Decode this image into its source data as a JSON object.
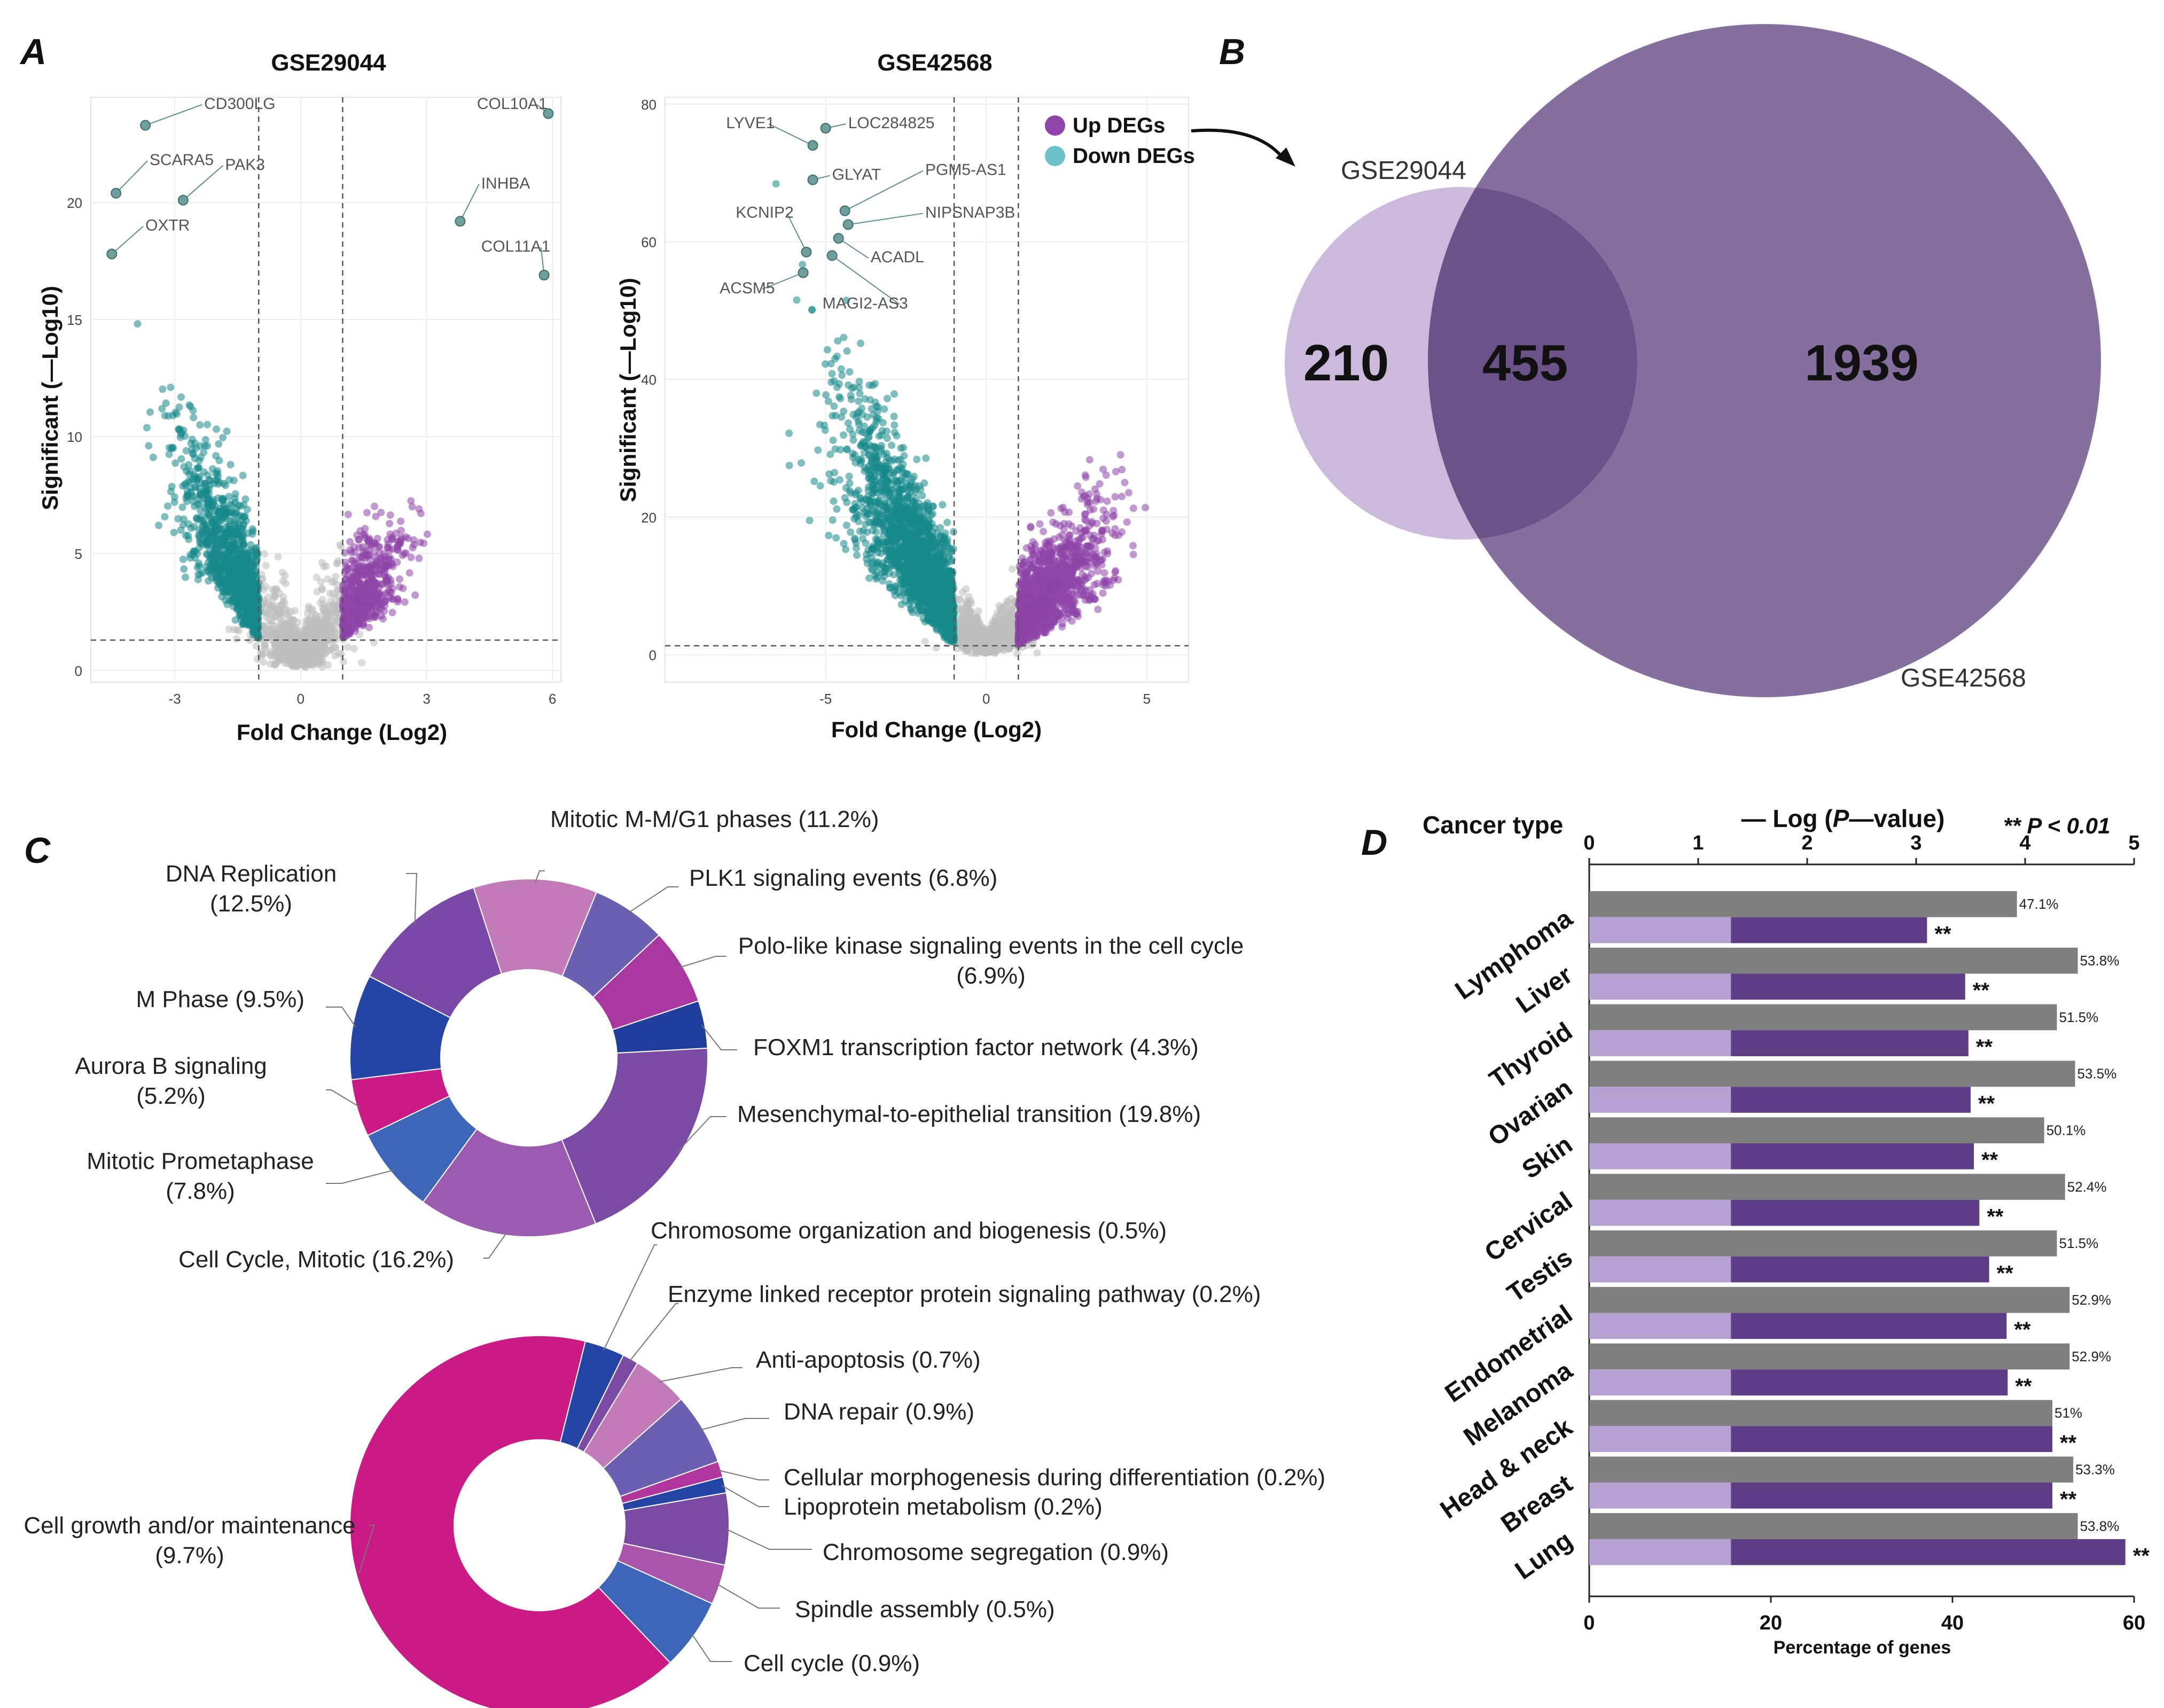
{
  "panel_labels": {
    "a": "A",
    "b": "B",
    "c": "C",
    "d": "D"
  },
  "colors": {
    "up": "#8e44a8",
    "down": "#15898a",
    "ns": "#bdbdbd",
    "grid": "#d0d0d0",
    "vennA": "#c9b6db",
    "vennB": "#7a6396",
    "vennOverlap": "#6b5289",
    "barGray": "#7f7f7f",
    "barLight": "#b5a2d3",
    "barDark": "#5e3d86"
  },
  "chart_data": [
    {
      "id": "volcano1",
      "type": "scatter",
      "title": "GSE29044",
      "xlabel": "Fold Change (Log2)",
      "ylabel": "Significant (—Log10)",
      "xlim": [
        -5,
        6.2
      ],
      "ylim": [
        -0.5,
        24.5
      ],
      "xticks": [
        "-3",
        "0",
        "3",
        "6"
      ],
      "yticks": [
        "0",
        "5",
        "10",
        "15",
        "20"
      ],
      "fc_threshold": 1,
      "p_threshold": 1.3,
      "labels": [
        {
          "name": "CD300LG",
          "x": -3.7,
          "y": 23.3,
          "lx": -2.3,
          "ly": 24.0
        },
        {
          "name": "SCARA5",
          "x": -4.4,
          "y": 20.4,
          "lx": -3.6,
          "ly": 21.6
        },
        {
          "name": "PAK3",
          "x": -2.8,
          "y": 20.1,
          "lx": -1.8,
          "ly": 21.4
        },
        {
          "name": "OXTR",
          "x": -4.5,
          "y": 17.8,
          "lx": -3.7,
          "ly": 18.8
        },
        {
          "name": "COL10A1",
          "x": 5.9,
          "y": 23.8,
          "lx": 4.2,
          "ly": 24.0
        },
        {
          "name": "INHBA",
          "x": 3.8,
          "y": 19.2,
          "lx": 4.3,
          "ly": 20.6
        },
        {
          "name": "COL11A1",
          "x": 5.8,
          "y": 16.9,
          "lx": 4.3,
          "ly": 17.9
        }
      ]
    },
    {
      "id": "volcano2",
      "type": "scatter",
      "title": "GSE42568",
      "xlabel": "Fold Change (Log2)",
      "ylabel": "Significant (—Log10)",
      "xlim": [
        -10,
        6.3
      ],
      "ylim": [
        -4,
        81
      ],
      "xticks": [
        "-5",
        "0",
        "5"
      ],
      "xtick_values": [
        -5,
        0,
        5
      ],
      "yticks": [
        "0",
        "20",
        "40",
        "60",
        "80"
      ],
      "fc_threshold": 1,
      "p_threshold": 1.3,
      "legend": [
        {
          "name": "Up DEGs",
          "color": "#8e44a8"
        },
        {
          "name": "Down DEGs",
          "color": "#6cc2c9"
        }
      ],
      "labels": [
        {
          "name": "LYVE1",
          "x": -5.4,
          "y": 74.0,
          "lx": -8.1,
          "ly": 76.5
        },
        {
          "name": "LOC284825",
          "x": -5.0,
          "y": 76.5,
          "lx": -4.3,
          "ly": 76.5
        },
        {
          "name": "GLYAT",
          "x": -5.4,
          "y": 69.0,
          "lx": -4.8,
          "ly": 69.0
        },
        {
          "name": "PGM5-AS1",
          "x": -4.4,
          "y": 64.5,
          "lx": -1.9,
          "ly": 69.7
        },
        {
          "name": "KCNIP2",
          "x": -5.6,
          "y": 58.5,
          "lx": -7.8,
          "ly": 63.5
        },
        {
          "name": "NIPSNAP3B",
          "x": -4.3,
          "y": 62.5,
          "lx": -1.9,
          "ly": 63.5
        },
        {
          "name": "ACADL",
          "x": -4.6,
          "y": 60.5,
          "lx": -3.6,
          "ly": 57.0
        },
        {
          "name": "ACSM5",
          "x": -5.7,
          "y": 55.5,
          "lx": -8.3,
          "ly": 52.5
        },
        {
          "name": "MAGI2-AS3",
          "x": -4.8,
          "y": 58.0,
          "lx": -5.1,
          "ly": 50.3
        }
      ]
    },
    {
      "id": "venn",
      "type": "venn",
      "sets": [
        "GSE29044",
        "GSE42568"
      ],
      "only_a": 210,
      "overlap": 455,
      "only_b": 1939
    },
    {
      "id": "pie1",
      "type": "pie",
      "donut": true,
      "slices": [
        {
          "label": "Mitotic M-M/G1 phases (11.2%)",
          "value": 11.2,
          "color": "#c27bb8"
        },
        {
          "label": "PLK1 signaling events (6.8%)",
          "value": 6.8,
          "color": "#6a5fb0"
        },
        {
          "label": "Polo-like kinase signaling events in the cell cycle (6.9%)",
          "value": 6.9,
          "color": "#a8389f"
        },
        {
          "label": "FOXM1 transcription factor network (4.3%)",
          "value": 4.3,
          "color": "#1f3e9e"
        },
        {
          "label": "Mesenchymal-to-epithelial transition (19.8%)",
          "value": 19.8,
          "color": "#7b4aa4"
        },
        {
          "label": "Cell Cycle, Mitotic (16.2%)",
          "value": 16.2,
          "color": "#9b5bb0"
        },
        {
          "label": "Mitotic Prometaphase (7.8%)",
          "value": 7.8,
          "color": "#3e66b8"
        },
        {
          "label": "Aurora B signaling (5.2%)",
          "value": 5.2,
          "color": "#cb1a86"
        },
        {
          "label": "M Phase (9.5%)",
          "value": 9.5,
          "color": "#2444a6"
        },
        {
          "label": "DNA Replication (12.5%)",
          "value": 12.5,
          "color": "#7a48a6"
        }
      ],
      "display_labels": [
        {
          "lines": [
            "Mitotic M-M/G1 phases (11.2%)"
          ],
          "anchor": "start"
        },
        {
          "lines": [
            "PLK1 signaling events (6.8%)"
          ],
          "anchor": "start"
        },
        {
          "lines": [
            "Polo-like kinase signaling events in the cell cycle",
            "(6.9%)"
          ],
          "anchor": "middle"
        },
        {
          "lines": [
            "FOXM1 transcription factor network (4.3%)"
          ],
          "anchor": "start"
        },
        {
          "lines": [
            "Mesenchymal-to-epithelial transition (19.8%)"
          ],
          "anchor": "start"
        },
        {
          "lines": [
            "Cell Cycle, Mitotic (16.2%)"
          ],
          "anchor": "end"
        },
        {
          "lines": [
            "Mitotic Prometaphase",
            "(7.8%)"
          ],
          "anchor": "middle"
        },
        {
          "lines": [
            "Aurora B signaling",
            "(5.2%)"
          ],
          "anchor": "middle"
        },
        {
          "lines": [
            "M Phase (9.5%)"
          ],
          "anchor": "end"
        },
        {
          "lines": [
            "DNA Replication",
            "(12.5%)"
          ],
          "anchor": "middle"
        }
      ]
    },
    {
      "id": "pie2",
      "type": "pie",
      "donut": true,
      "slices": [
        {
          "label": "Chromosome organization and biogenesis (0.5%)",
          "value": 0.5,
          "color": "#2444a6"
        },
        {
          "label": "Enzyme linked receptor protein signaling pathway (0.2%)",
          "value": 0.2,
          "color": "#7b4aa4"
        },
        {
          "label": "Anti-apoptosis (0.7%)",
          "value": 0.7,
          "color": "#c27bb8"
        },
        {
          "label": "DNA repair (0.9%)",
          "value": 0.9,
          "color": "#6a5fb0"
        },
        {
          "label": "Cellular morphogenesis during differentiation (0.2%)",
          "value": 0.2,
          "color": "#b0359c"
        },
        {
          "label": "Lipoprotein metabolism (0.2%)",
          "value": 0.2,
          "color": "#2444a6"
        },
        {
          "label": "Chromosome segregation (0.9%)",
          "value": 0.9,
          "color": "#7b4aa4"
        },
        {
          "label": "Spindle assembly (0.5%)",
          "value": 0.5,
          "color": "#a855ab"
        },
        {
          "label": "Cell cycle (0.9%)",
          "value": 0.9,
          "color": "#3e66b8"
        },
        {
          "label": "Cell growth and/or maintenance (9.7%)",
          "value": 9.7,
          "color": "#cb1a86"
        }
      ],
      "display_labels": [
        {
          "lines": [
            "Chromosome organization and biogenesis (0.5%)"
          ],
          "anchor": "start"
        },
        {
          "lines": [
            "Enzyme linked receptor protein signaling pathway (0.2%)"
          ],
          "anchor": "start"
        },
        {
          "lines": [
            "Anti-apoptosis (0.7%)"
          ],
          "anchor": "start"
        },
        {
          "lines": [
            "DNA repair (0.9%)"
          ],
          "anchor": "start"
        },
        {
          "lines": [
            "Cellular morphogenesis during differentiation (0.2%)"
          ],
          "anchor": "start"
        },
        {
          "lines": [
            "Lipoprotein metabolism (0.2%)"
          ],
          "anchor": "start"
        },
        {
          "lines": [
            "Chromosome segregation (0.9%)"
          ],
          "anchor": "start"
        },
        {
          "lines": [
            "Spindle assembly (0.5%)"
          ],
          "anchor": "start"
        },
        {
          "lines": [
            "Cell cycle (0.9%)"
          ],
          "anchor": "start"
        },
        {
          "lines": [
            "Cell growth and/or maintenance",
            "(9.7%)"
          ],
          "anchor": "middle"
        }
      ]
    },
    {
      "id": "bars",
      "type": "bar",
      "orientation": "horizontal",
      "category_title": "Cancer type",
      "top_axis_title_pre": "— Log (",
      "top_axis_title_p": "P",
      "top_axis_title_post": "—value)",
      "significance_note": "** P < 0.01",
      "bottom_axis_title": "Percentage of genes",
      "top_range": [
        0,
        5
      ],
      "top_ticks": [
        "0",
        "1",
        "2",
        "3",
        "4",
        "5"
      ],
      "bottom_range": [
        0,
        60
      ],
      "bottom_ticks": [
        "0",
        "20",
        "40",
        "60"
      ],
      "threshold_log_p": 1.3,
      "categories": [
        "Lymphoma",
        "Liver",
        "Thyroid",
        "Ovarian",
        "Skin",
        "Cervical",
        "Testis",
        "Endometrial",
        "Melanoma",
        "Head & neck",
        "Breast",
        "Lung"
      ],
      "percentage": [
        47.1,
        53.8,
        51.5,
        53.5,
        50.1,
        52.4,
        51.5,
        52.9,
        52.9,
        51,
        53.3,
        53.8
      ],
      "percentage_labels": [
        "47.1%",
        "53.8%",
        "51.5%",
        "53.5%",
        "50.1%",
        "52.4%",
        "51.5%",
        "52.9%",
        "52.9%",
        "51%",
        "53.3%",
        "53.8%"
      ],
      "neg_log_p": [
        3.1,
        3.45,
        3.48,
        3.5,
        3.53,
        3.58,
        3.67,
        3.83,
        3.84,
        4.25,
        4.25,
        4.92
      ],
      "significance": [
        "**",
        "**",
        "**",
        "**",
        "**",
        "**",
        "**",
        "**",
        "**",
        "**",
        "**",
        "**"
      ]
    }
  ]
}
